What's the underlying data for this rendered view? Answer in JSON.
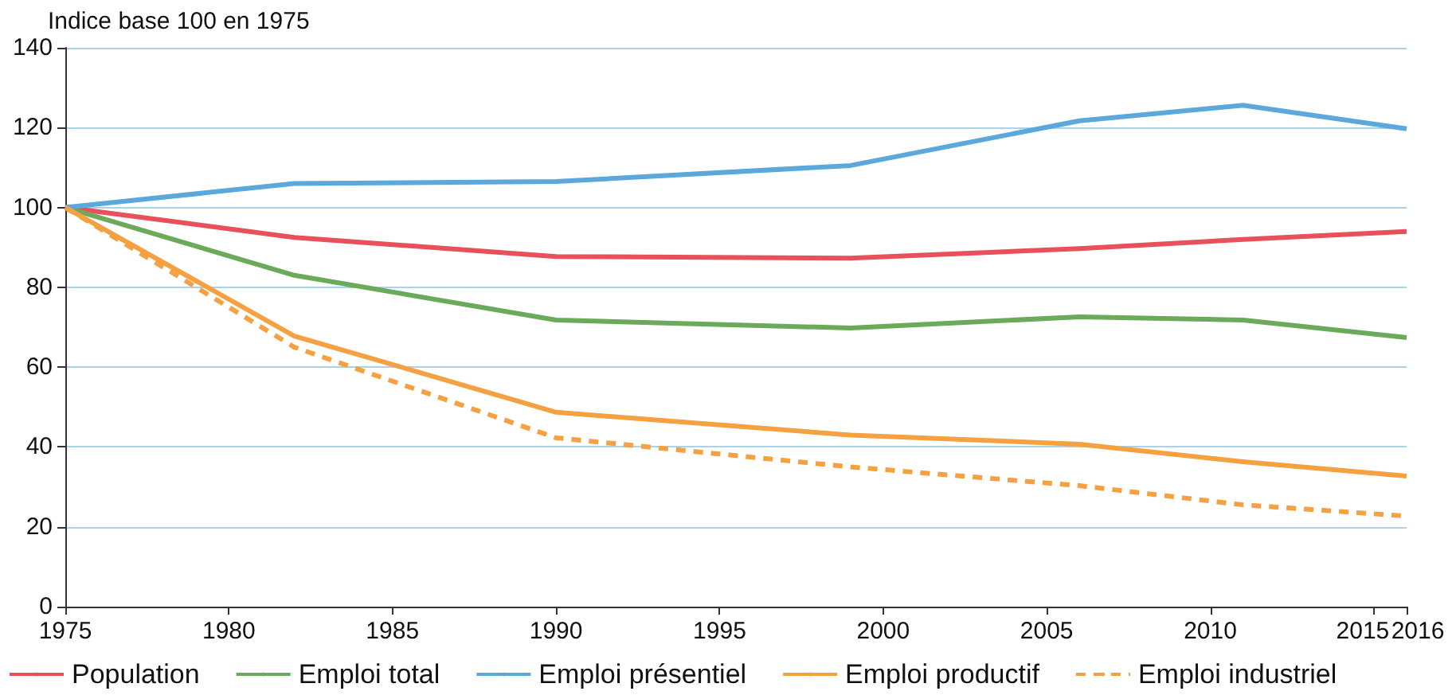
{
  "chart_data": {
    "type": "line",
    "ylabel": "Indice base 100 en 1975",
    "x": [
      1975,
      1982,
      1990,
      1999,
      2006,
      2011,
      2016
    ],
    "series": [
      {
        "name": "Population",
        "color": "#e8505b",
        "values": [
          100,
          92.5,
          87.7,
          87.3,
          89.7,
          92,
          94
        ]
      },
      {
        "name": "Emploi total",
        "color": "#6aaa5a",
        "values": [
          100,
          83,
          71.8,
          69.8,
          72.6,
          71.8,
          67.4
        ]
      },
      {
        "name": "Emploi présentiel",
        "color": "#5aa8dc",
        "values": [
          100,
          106,
          106.5,
          110.5,
          121.7,
          125.6,
          119.7
        ]
      },
      {
        "name": "Emploi productif",
        "color": "#f5a142",
        "values": [
          100,
          67.8,
          48.7,
          43,
          40.7,
          36.3,
          32.7
        ]
      },
      {
        "name": "Emploi industriel",
        "color": "#f5a142",
        "line_style": "dashed",
        "values": [
          100,
          65,
          42.3,
          35,
          30.3,
          25.5,
          22.7
        ]
      }
    ],
    "xlim": [
      1975,
      2016
    ],
    "xticks": [
      1975,
      1980,
      1985,
      1990,
      1995,
      2000,
      2005,
      2010,
      2015,
      2016
    ],
    "ylim": [
      0,
      140
    ],
    "yticks": [
      0,
      20,
      40,
      60,
      80,
      100,
      120,
      140
    ],
    "grid": "y",
    "legend": "bottom",
    "marker": "none",
    "line_style": "solid"
  }
}
